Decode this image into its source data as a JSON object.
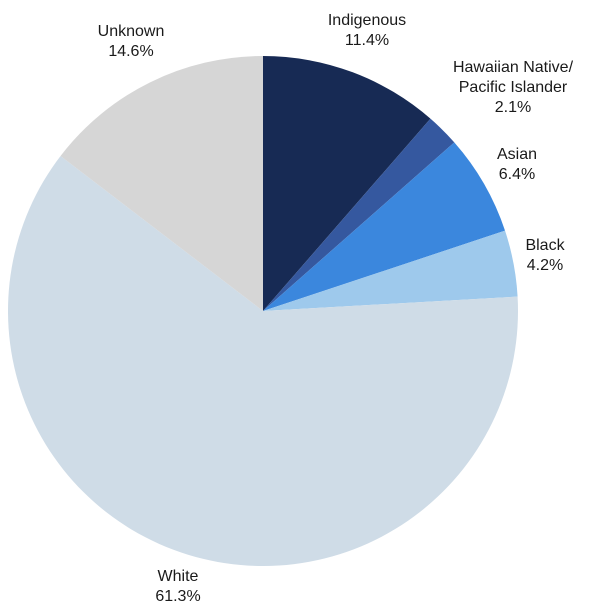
{
  "chart_data": {
    "type": "pie",
    "start_angle_deg": 90,
    "direction": "clockwise",
    "slices": [
      {
        "label_lines": [
          "Indigenous"
        ],
        "value": 11.4,
        "value_text": "11.4%",
        "color": "#172a54"
      },
      {
        "label_lines": [
          "Hawaiian Native/",
          "Pacific Islander"
        ],
        "value": 2.1,
        "value_text": "2.1%",
        "color": "#35589f"
      },
      {
        "label_lines": [
          "Asian"
        ],
        "value": 6.4,
        "value_text": "6.4%",
        "color": "#3b87dd"
      },
      {
        "label_lines": [
          "Black"
        ],
        "value": 4.2,
        "value_text": "4.2%",
        "color": "#9ec9ec"
      },
      {
        "label_lines": [
          "White"
        ],
        "value": 61.3,
        "value_text": "61.3%",
        "color": "#cfdce7"
      },
      {
        "label_lines": [
          "Unknown"
        ],
        "value": 14.6,
        "value_text": "14.6%",
        "color": "#d6d6d6"
      }
    ]
  }
}
